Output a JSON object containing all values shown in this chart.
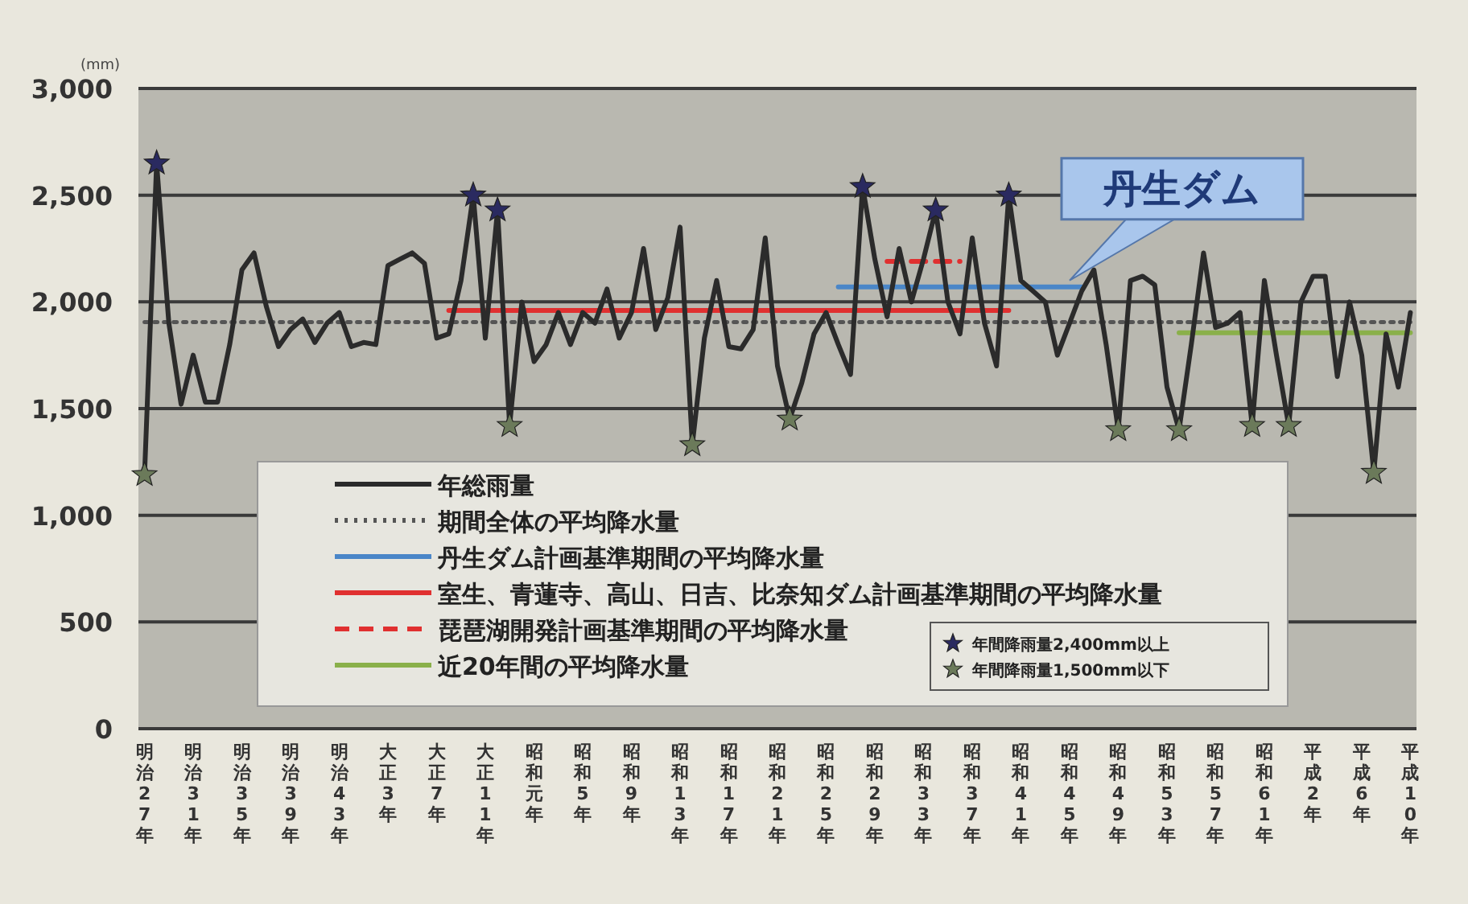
{
  "chart_data": {
    "type": "line",
    "ylabel": "(mm)",
    "categories": [
      "明治27年",
      null,
      null,
      null,
      "明治31年",
      null,
      null,
      null,
      "明治35年",
      null,
      null,
      null,
      "明治39年",
      null,
      null,
      null,
      "明治43年",
      null,
      null,
      null,
      "大正3年",
      null,
      null,
      null,
      "大正7年",
      null,
      null,
      null,
      "大正11年",
      null,
      null,
      null,
      "昭和元年",
      null,
      null,
      null,
      "昭和5年",
      null,
      null,
      null,
      "昭和9年",
      null,
      null,
      null,
      "昭和13年",
      null,
      null,
      null,
      "昭和17年",
      null,
      null,
      null,
      "昭和21年",
      null,
      null,
      null,
      "昭和25年",
      null,
      null,
      null,
      "昭和29年",
      null,
      null,
      null,
      "昭和33年",
      null,
      null,
      null,
      "昭和37年",
      null,
      null,
      null,
      "昭和41年",
      null,
      null,
      null,
      "昭和45年",
      null,
      null,
      null,
      "昭和49年",
      null,
      null,
      null,
      "昭和53年",
      null,
      null,
      null,
      "昭和57年",
      null,
      null,
      null,
      "昭和61年",
      null,
      null,
      null,
      "平成2年",
      null,
      null,
      null,
      "平成6年",
      null,
      null,
      null,
      "平成10年"
    ],
    "ylim": [
      0,
      3000
    ],
    "yticks": [
      0,
      500,
      {
        "value": 1000,
        "label": "1,000"
      },
      {
        "value": 1500,
        "label": "1,500"
      },
      {
        "value": 2000,
        "label": "2,000"
      },
      {
        "value": 2500,
        "label": "2,500"
      },
      {
        "value": 3000,
        "label": "3,000"
      }
    ],
    "grid": "y",
    "legend": "bottom",
    "series": [
      {
        "name": "年総雨量",
        "color": "#2b2b2b",
        "type": "line",
        "line_style": "solid",
        "values": [
          1190,
          2650,
          1900,
          1520,
          1750,
          1530,
          1530,
          1800,
          2150,
          2230,
          1980,
          1790,
          1870,
          1920,
          1810,
          1900,
          1950,
          1790,
          1810,
          1800,
          2170,
          2200,
          2230,
          2180,
          1830,
          1850,
          2100,
          2500,
          1830,
          2430,
          1420,
          2000,
          1720,
          1800,
          1950,
          1800,
          1950,
          1900,
          2060,
          1830,
          1950,
          2250,
          1870,
          2020,
          2350,
          1330,
          1830,
          2100,
          1790,
          1780,
          1870,
          2300,
          1700,
          1450,
          1620,
          1850,
          1950,
          1800,
          1660,
          2540,
          2200,
          1930,
          2250,
          2000,
          2200,
          2430,
          2000,
          1850,
          2300,
          1900,
          1700,
          2500,
          2100,
          2050,
          2000,
          1750,
          1900,
          2050,
          2150,
          1800,
          1400,
          2100,
          2120,
          2080,
          1600,
          1400,
          1800,
          2230,
          1880,
          1900,
          1950,
          1420,
          2100,
          1750,
          1420,
          2000,
          2120,
          2120,
          1650,
          2000,
          1750,
          1200,
          1850,
          1600,
          1950
        ]
      },
      {
        "name": "期間全体の平均降水量",
        "color": "#555555",
        "type": "line",
        "line_style": "dotted",
        "values": [
          1905,
          1905,
          1905,
          1905,
          1905,
          1905,
          1905,
          1905,
          1905,
          1905,
          1905,
          1905,
          1905,
          1905,
          1905,
          1905,
          1905,
          1905,
          1905,
          1905,
          1905,
          1905,
          1905,
          1905,
          1905,
          1905,
          1905,
          1905,
          1905,
          1905,
          1905,
          1905,
          1905,
          1905,
          1905,
          1905,
          1905,
          1905,
          1905,
          1905,
          1905,
          1905,
          1905,
          1905,
          1905,
          1905,
          1905,
          1905,
          1905,
          1905,
          1905,
          1905,
          1905,
          1905,
          1905,
          1905,
          1905,
          1905,
          1905,
          1905,
          1905,
          1905,
          1905,
          1905,
          1905,
          1905,
          1905,
          1905,
          1905,
          1905,
          1905,
          1905,
          1905,
          1905,
          1905,
          1905,
          1905,
          1905,
          1905,
          1905,
          1905,
          1905,
          1905,
          1905,
          1905,
          1905,
          1905,
          1905,
          1905,
          1905,
          1905,
          1905,
          1905,
          1905,
          1905,
          1905,
          1905,
          1905,
          1905,
          1905,
          1905,
          1905,
          1905,
          1905,
          1905
        ]
      },
      {
        "name": "丹生ダム計画基準期間の平均降水量",
        "color": "#4a86c8",
        "type": "line",
        "line_style": "solid",
        "values": [
          null,
          null,
          null,
          null,
          null,
          null,
          null,
          null,
          null,
          null,
          null,
          null,
          null,
          null,
          null,
          null,
          null,
          null,
          null,
          null,
          null,
          null,
          null,
          null,
          null,
          null,
          null,
          null,
          null,
          null,
          null,
          null,
          null,
          null,
          null,
          null,
          null,
          null,
          null,
          null,
          null,
          null,
          null,
          null,
          null,
          null,
          null,
          null,
          null,
          null,
          null,
          null,
          null,
          null,
          null,
          null,
          null,
          2070,
          2070,
          2070,
          2070,
          2070,
          2070,
          2070,
          2070,
          2070,
          2070,
          2070,
          2070,
          2070,
          2070,
          2070,
          2070,
          2070,
          2070,
          2070,
          2070,
          2070,
          null,
          null,
          null,
          null,
          null,
          null,
          null,
          null,
          null,
          null,
          null,
          null,
          null,
          null,
          null,
          null,
          null,
          null,
          null,
          null,
          null,
          null,
          null,
          null,
          null,
          null,
          null
        ]
      },
      {
        "name": "室生、青蓮寺、高山、日吉、比奈知ダム計画基準期間の平均降水量",
        "color": "#e03030",
        "type": "line",
        "line_style": "solid",
        "values": [
          null,
          null,
          null,
          null,
          null,
          null,
          null,
          null,
          null,
          null,
          null,
          null,
          null,
          null,
          null,
          null,
          null,
          null,
          null,
          null,
          null,
          null,
          null,
          null,
          null,
          1960,
          1960,
          1960,
          1960,
          1960,
          1960,
          1960,
          1960,
          1960,
          1960,
          1960,
          1960,
          1960,
          1960,
          1960,
          1960,
          1960,
          1960,
          1960,
          1960,
          1960,
          1960,
          1960,
          1960,
          1960,
          1960,
          1960,
          1960,
          1960,
          1960,
          1960,
          1960,
          1960,
          1960,
          1960,
          1960,
          1960,
          1960,
          1960,
          1960,
          1960,
          1960,
          1960,
          1960,
          1960,
          1960,
          1960,
          null,
          null,
          null,
          null,
          null,
          null,
          null,
          null,
          null,
          null,
          null,
          null,
          null,
          null,
          null,
          null,
          null,
          null,
          null,
          null,
          null,
          null,
          null,
          null,
          null,
          null,
          null,
          null,
          null,
          null,
          null,
          null,
          null
        ]
      },
      {
        "name": "琵琶湖開発計画基準期間の平均降水量",
        "color": "#e03030",
        "type": "line",
        "line_style": "dashed",
        "values": [
          null,
          null,
          null,
          null,
          null,
          null,
          null,
          null,
          null,
          null,
          null,
          null,
          null,
          null,
          null,
          null,
          null,
          null,
          null,
          null,
          null,
          null,
          null,
          null,
          null,
          null,
          null,
          null,
          null,
          null,
          null,
          null,
          null,
          null,
          null,
          null,
          null,
          null,
          null,
          null,
          null,
          null,
          null,
          null,
          null,
          null,
          null,
          null,
          null,
          null,
          null,
          null,
          null,
          null,
          null,
          null,
          null,
          null,
          null,
          null,
          null,
          2190,
          2190,
          2190,
          2190,
          2190,
          2190,
          2190,
          null,
          null,
          null,
          null,
          null,
          null,
          null,
          null,
          null,
          null,
          null,
          null,
          null,
          null,
          null,
          null,
          null,
          null,
          null,
          null,
          null,
          null,
          null,
          null,
          null,
          null,
          null,
          null,
          null,
          null,
          null,
          null,
          null,
          null,
          null,
          null,
          null
        ]
      },
      {
        "name": "近20年間の平均降水量",
        "color": "#8ab04a",
        "type": "line",
        "line_style": "solid",
        "values": [
          null,
          null,
          null,
          null,
          null,
          null,
          null,
          null,
          null,
          null,
          null,
          null,
          null,
          null,
          null,
          null,
          null,
          null,
          null,
          null,
          null,
          null,
          null,
          null,
          null,
          null,
          null,
          null,
          null,
          null,
          null,
          null,
          null,
          null,
          null,
          null,
          null,
          null,
          null,
          null,
          null,
          null,
          null,
          null,
          null,
          null,
          null,
          null,
          null,
          null,
          null,
          null,
          null,
          null,
          null,
          null,
          null,
          null,
          null,
          null,
          null,
          null,
          null,
          null,
          null,
          null,
          null,
          null,
          null,
          null,
          null,
          null,
          null,
          null,
          null,
          null,
          null,
          null,
          null,
          null,
          null,
          null,
          null,
          null,
          null,
          1855,
          1855,
          1855,
          1855,
          1855,
          1855,
          1855,
          1855,
          1855,
          1855,
          1855,
          1855,
          1855,
          1855,
          1855,
          1855,
          1855,
          1855,
          1855,
          1855
        ]
      },
      {
        "name": "年間降雨量2,400mm以上",
        "color": "#2a2a60",
        "type": "scatter",
        "marker": "star",
        "values": [
          null,
          2650,
          null,
          null,
          null,
          null,
          null,
          null,
          null,
          null,
          null,
          null,
          null,
          null,
          null,
          null,
          null,
          null,
          null,
          null,
          null,
          null,
          null,
          null,
          null,
          null,
          null,
          2500,
          null,
          2430,
          null,
          null,
          null,
          null,
          null,
          null,
          null,
          null,
          null,
          null,
          null,
          null,
          null,
          null,
          null,
          null,
          null,
          null,
          null,
          null,
          null,
          null,
          null,
          null,
          null,
          null,
          null,
          null,
          null,
          2540,
          null,
          null,
          null,
          null,
          null,
          2430,
          null,
          null,
          null,
          null,
          null,
          2500,
          null,
          null,
          null,
          null,
          null,
          null,
          null,
          null,
          null,
          null,
          null,
          null,
          null,
          null,
          null,
          null,
          null,
          null,
          null,
          null,
          null,
          null,
          null,
          null,
          null,
          null,
          null,
          null,
          null,
          null,
          null,
          null,
          null
        ]
      },
      {
        "name": "年間降雨量1,500mm以下",
        "color": "#6b7a5a",
        "type": "scatter",
        "marker": "star",
        "values": [
          1190,
          null,
          null,
          null,
          null,
          null,
          null,
          null,
          null,
          null,
          null,
          null,
          null,
          null,
          null,
          null,
          null,
          null,
          null,
          null,
          null,
          null,
          null,
          null,
          null,
          null,
          null,
          null,
          null,
          null,
          1420,
          null,
          null,
          null,
          null,
          null,
          null,
          null,
          null,
          null,
          null,
          null,
          null,
          null,
          null,
          1330,
          null,
          null,
          null,
          null,
          null,
          null,
          null,
          1450,
          null,
          null,
          null,
          null,
          null,
          null,
          null,
          null,
          null,
          null,
          null,
          null,
          null,
          null,
          null,
          null,
          null,
          null,
          null,
          null,
          null,
          null,
          null,
          null,
          null,
          null,
          1400,
          null,
          null,
          null,
          null,
          1400,
          null,
          null,
          null,
          null,
          null,
          1420,
          null,
          null,
          1420,
          null,
          null,
          null,
          null,
          null,
          null,
          1200,
          null,
          null,
          null
        ]
      }
    ],
    "annotations": [
      {
        "text": "丹生ダム",
        "x": "昭和45年",
        "y": 2070
      }
    ]
  }
}
